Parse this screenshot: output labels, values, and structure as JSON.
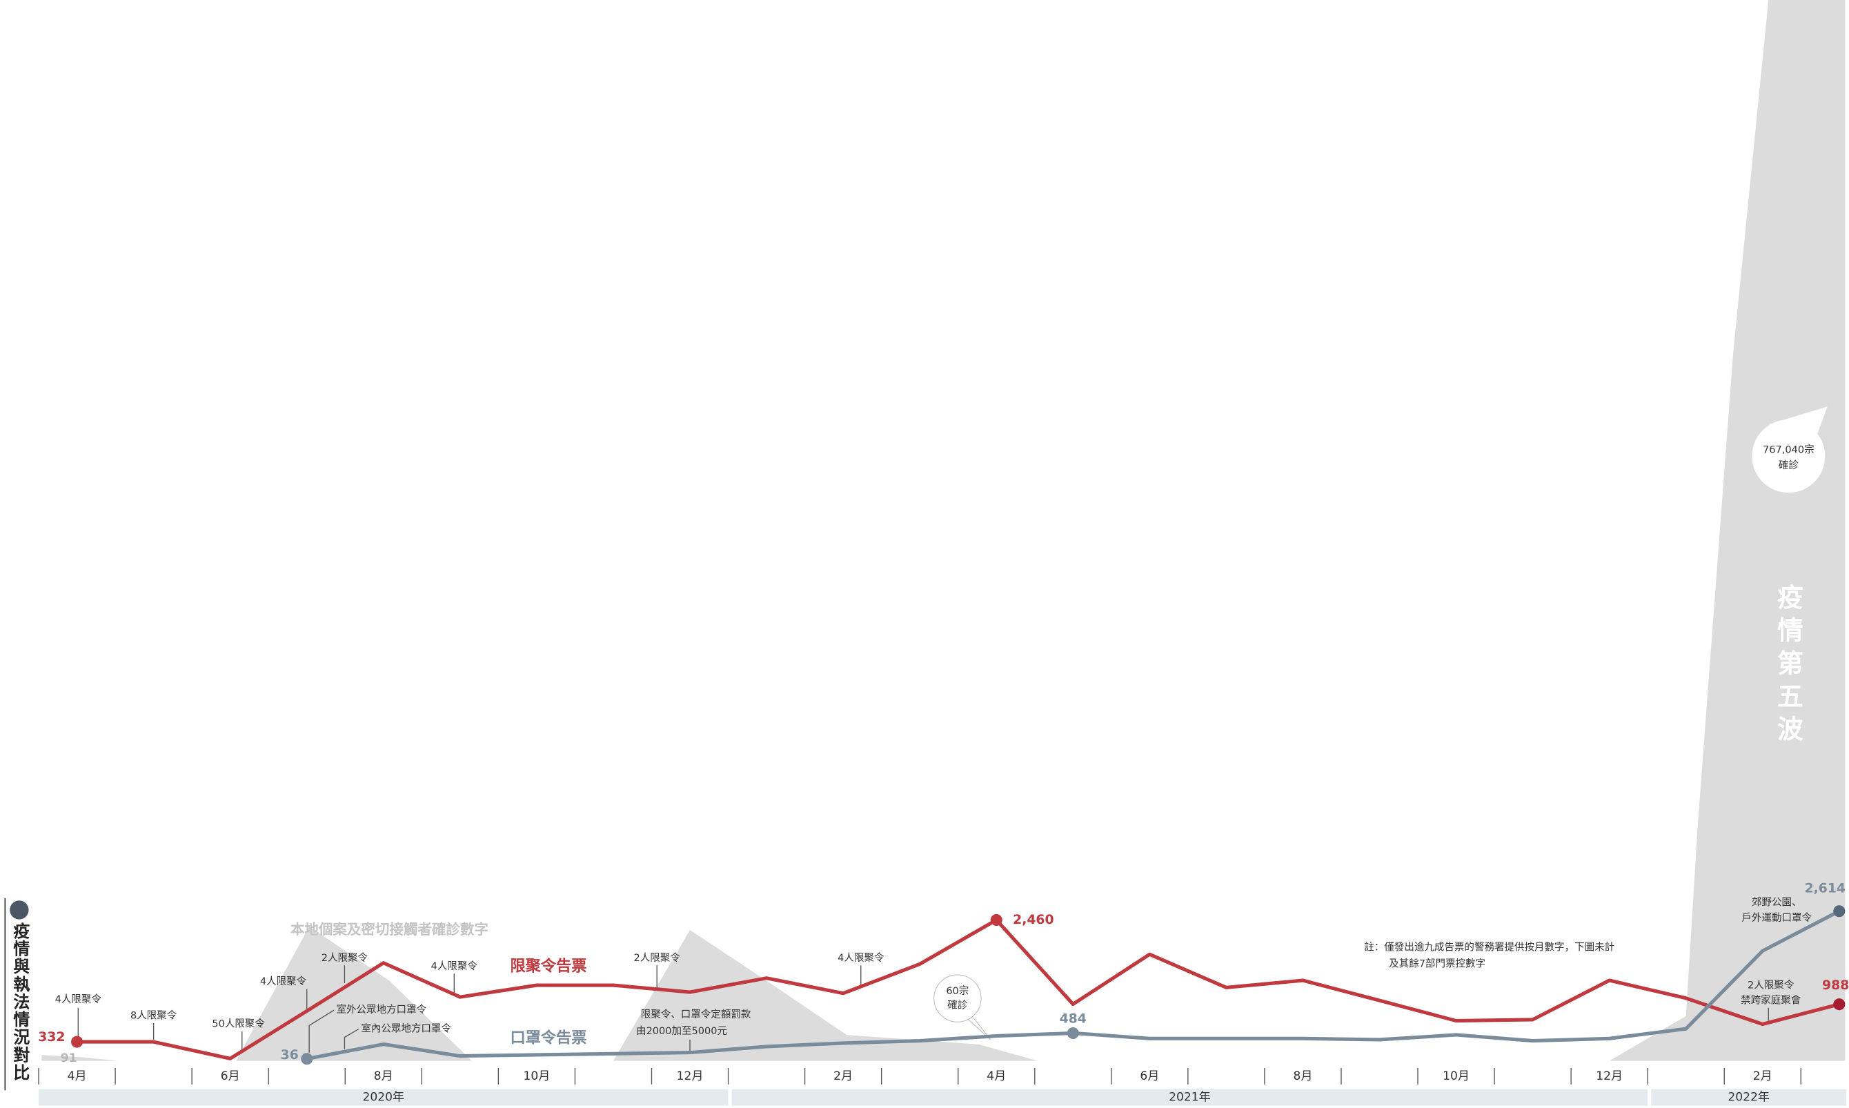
{
  "chart_data": {
    "type": "line",
    "title": "疫情與執法情況對比",
    "categories": [
      "4月",
      null,
      "6月",
      null,
      "8月",
      null,
      "10月",
      null,
      "12月",
      null,
      "2月",
      null,
      "4月",
      null,
      "6月",
      null,
      "8月",
      null,
      "10月",
      null,
      "12月",
      null,
      "2月",
      null
    ],
    "year_labels": [
      "2020年",
      "2021年",
      "2022年"
    ],
    "series": [
      {
        "name": "限聚令告票",
        "color": "#c0393e",
        "values": [
          332,
          332,
          40,
          870,
          1710,
          1115,
          1320,
          1320,
          1200,
          1445,
          1180,
          1690,
          2460,
          990,
          1860,
          1280,
          1405,
          1055,
          700,
          720,
          1405,
          1095,
          640,
          988
        ],
        "value_labels": [
          "332",
          null,
          null,
          null,
          null,
          null,
          null,
          null,
          null,
          null,
          null,
          null,
          "2,460",
          null,
          null,
          null,
          null,
          null,
          null,
          null,
          null,
          null,
          null,
          "988"
        ]
      },
      {
        "name": "口罩令告票",
        "color": "#7a8c9b",
        "values": [
          null,
          null,
          null,
          36,
          290,
          85,
          105,
          125,
          145,
          250,
          310,
          350,
          435,
          484,
          390,
          390,
          390,
          370,
          455,
          350,
          390,
          560,
          1920,
          2614
        ],
        "value_labels": [
          null,
          null,
          null,
          "36",
          null,
          null,
          null,
          null,
          null,
          null,
          null,
          null,
          null,
          "484",
          null,
          null,
          null,
          null,
          null,
          null,
          null,
          null,
          null,
          "2,614"
        ]
      }
    ],
    "cases_label": "本地個案及密切接觸者確診數字",
    "cases_start_label": "91",
    "fifth_wave_label": "疫情第五波",
    "fifth_wave_peak": [
      "767,040宗",
      "確診"
    ],
    "small_wave_bubble": [
      "60宗",
      "確診"
    ],
    "annotations": {
      "a1": "4人限聚令",
      "a2": "8人限聚令",
      "a3": "50人限聚令",
      "a4": "4人限聚令",
      "a5": "2人限聚令",
      "a6": "4人限聚令",
      "m1": "室外公眾地方口罩令",
      "m2": "室內公眾地方口罩令",
      "a7": "2人限聚令",
      "f": [
        "限聚令、口罩令定額罰款",
        "由2000加至5000元"
      ],
      "a8": "4人限聚令",
      "m3": [
        "郊野公園、",
        "戶外運動口罩令"
      ],
      "a9": [
        "2人限聚令",
        "禁跨家庭聚會"
      ]
    },
    "note": [
      "註：僅發出逾九成告票的警務署提供按月數字，下圖未計",
      "及其餘7部門票控數字"
    ]
  }
}
